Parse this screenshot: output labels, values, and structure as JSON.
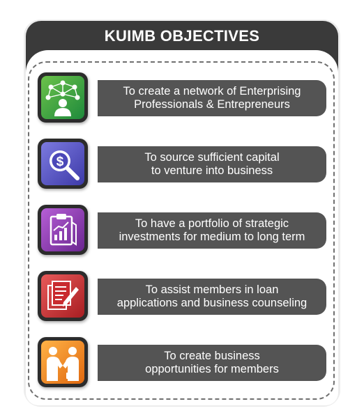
{
  "title": "KUIMB OBJECTIVES",
  "objectives": [
    {
      "text": "To create a network of Enterprising\nProfessionals & Entrepreneurs",
      "icon": "network-icon",
      "color": "#3aa34a"
    },
    {
      "text": "To source sufficient capital\nto venture into business",
      "icon": "dollar-magnifier-icon",
      "color": "#5a57c7"
    },
    {
      "text": "To have a portfolio of strategic\ninvestments for medium to long term",
      "icon": "clipboard-chart-icon",
      "color": "#8a3ab0"
    },
    {
      "text": "To assist members in loan\napplications and business counseling",
      "icon": "document-pen-icon",
      "color": "#d03a3a"
    },
    {
      "text": "To create business\nopportunities for members",
      "icon": "handshake-icon",
      "color": "#f08a1e"
    }
  ]
}
